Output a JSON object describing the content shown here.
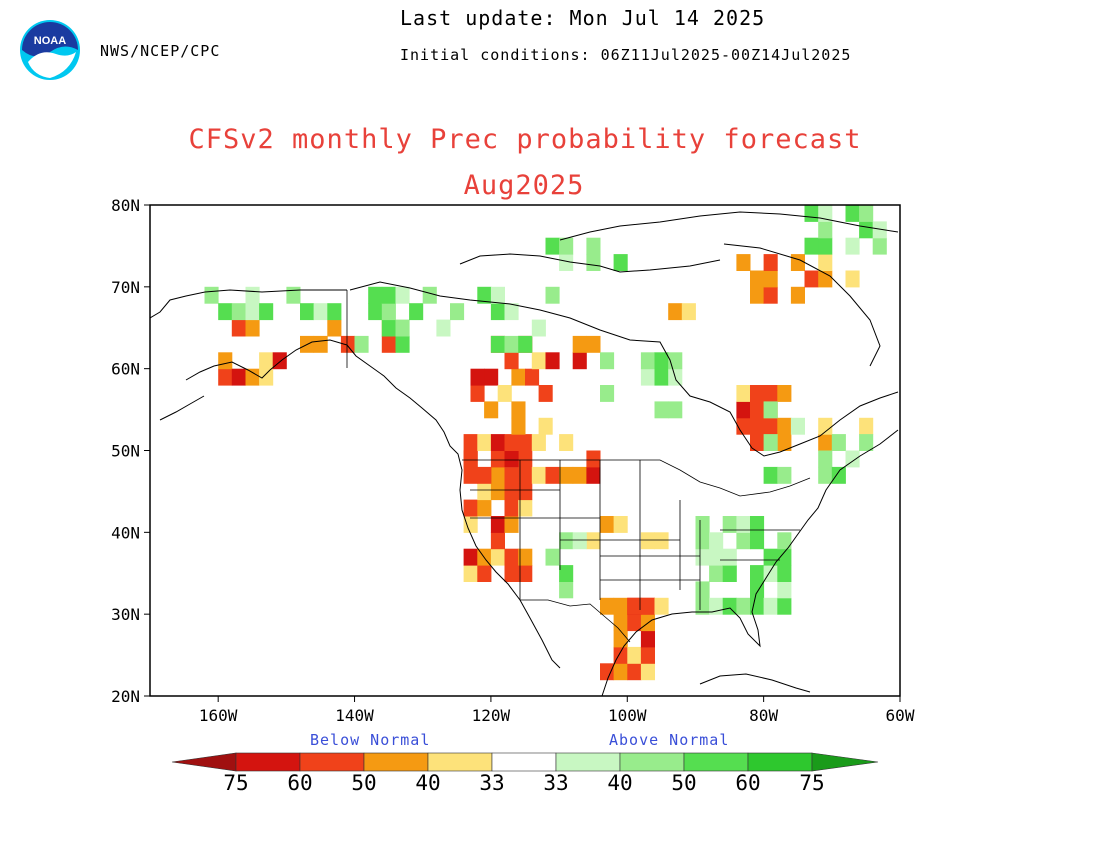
{
  "header": {
    "org": "NWS/NCEP/CPC",
    "last_update": "Last update: Mon Jul 14 2025",
    "initial_conditions": "Initial conditions: 06Z11Jul2025-00Z14Jul2025",
    "logo_text": "NOAA"
  },
  "title": {
    "line1": "CFSv2 monthly Prec probability forecast",
    "line2": "Aug2025"
  },
  "map": {
    "lon_range": [
      -170,
      -60
    ],
    "lat_range": [
      20,
      80
    ],
    "lat_ticks": [
      "20N",
      "30N",
      "40N",
      "50N",
      "60N",
      "70N",
      "80N"
    ],
    "lon_ticks": [
      "160W",
      "140W",
      "120W",
      "100W",
      "80W",
      "60W"
    ]
  },
  "legend": {
    "below_label": "Below Normal",
    "above_label": "Above Normal",
    "values": [
      "75",
      "60",
      "50",
      "40",
      "33",
      "33",
      "40",
      "50",
      "60",
      "75"
    ],
    "colors": {
      "below": [
        "#a01010",
        "#d4140f",
        "#f0421a",
        "#f59a12",
        "#fde27a"
      ],
      "neutral": "#ffffff",
      "above": [
        "#c8f7c2",
        "#98ec8c",
        "#55de50",
        "#2ec82e",
        "#1a9b1a"
      ]
    }
  }
}
